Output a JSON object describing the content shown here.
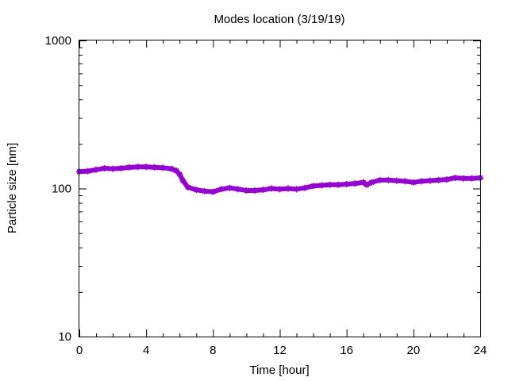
{
  "chart_data": {
    "type": "line",
    "title": "Modes location (3/19/19)",
    "xlabel": "Time [hour]",
    "ylabel": "Particle size [nm]",
    "x_scale": "linear",
    "y_scale": "log",
    "xlim": [
      0,
      24
    ],
    "ylim": [
      10,
      1000
    ],
    "x_ticks": [
      0,
      4,
      8,
      12,
      16,
      20,
      24
    ],
    "x_tick_labels": [
      "0",
      "4",
      "8",
      "12",
      "16",
      "20",
      "24"
    ],
    "y_ticks": [
      10,
      100,
      1000
    ],
    "y_tick_labels": [
      "10",
      "100",
      "1000"
    ],
    "grid": false,
    "legend": false,
    "series": [
      {
        "color": "#9400d3",
        "marker": "star",
        "x": [
          0.0,
          0.5,
          1.0,
          1.5,
          2.0,
          2.5,
          3.0,
          3.5,
          4.0,
          4.5,
          5.0,
          5.5,
          5.8,
          6.0,
          6.2,
          6.5,
          7.0,
          7.5,
          8.0,
          8.5,
          9.0,
          9.5,
          10.0,
          10.5,
          11.0,
          11.5,
          12.0,
          12.5,
          13.0,
          13.5,
          14.0,
          14.5,
          15.0,
          15.5,
          16.0,
          16.5,
          17.0,
          17.2,
          17.5,
          18.0,
          18.5,
          19.0,
          19.5,
          20.0,
          20.5,
          21.0,
          21.5,
          22.0,
          22.5,
          23.0,
          23.5,
          24.0
        ],
        "y": [
          130,
          131,
          134,
          137,
          136,
          137,
          139,
          140,
          140,
          139,
          138,
          136,
          132,
          125,
          113,
          102,
          98,
          96,
          95,
          99,
          101,
          99,
          97,
          97,
          98,
          100,
          99,
          100,
          99,
          101,
          104,
          105,
          106,
          106,
          107,
          108,
          110,
          106,
          110,
          114,
          114,
          113,
          112,
          110,
          112,
          113,
          114,
          115,
          118,
          117,
          117,
          118
        ]
      }
    ]
  }
}
